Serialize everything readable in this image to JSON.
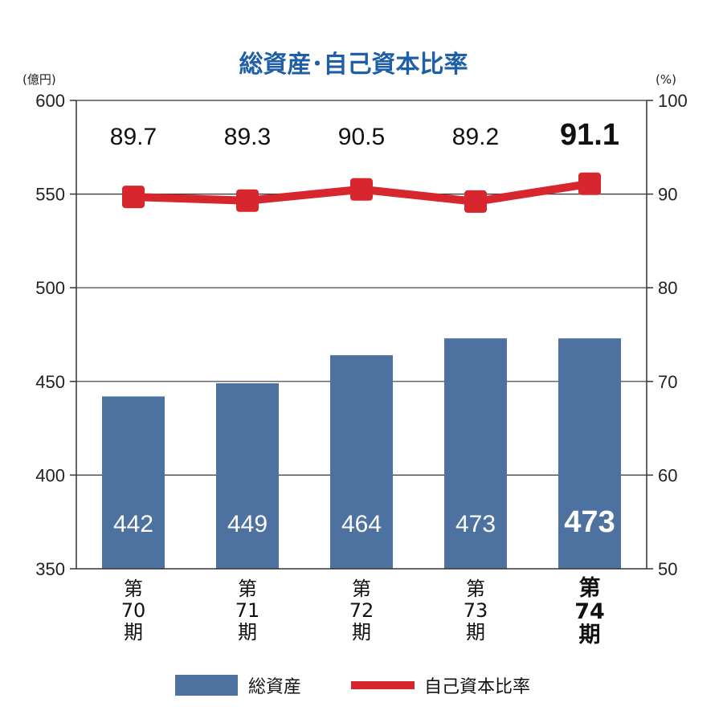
{
  "chart_data": {
    "type": "bar",
    "title": "総資産･自己資本比率",
    "title_color": "#1f5fa8",
    "left_axis_unit": "(億円)",
    "right_axis_unit": "(%)",
    "categories": [
      [
        "第",
        "70",
        "期"
      ],
      [
        "第",
        "71",
        "期"
      ],
      [
        "第",
        "72",
        "期"
      ],
      [
        "第",
        "73",
        "期"
      ],
      [
        "第",
        "74",
        "期"
      ]
    ],
    "highlight_index": 4,
    "ylim_left": [
      350,
      600
    ],
    "yticks_left": [
      "350",
      "400",
      "450",
      "500",
      "550",
      "600"
    ],
    "ylim_right": [
      50,
      100
    ],
    "yticks_right": [
      "50",
      "60",
      "70",
      "80",
      "90",
      "100"
    ],
    "grid": true,
    "series": [
      {
        "name": "総資産",
        "kind": "bar",
        "axis": "left",
        "color": "#4e72a0",
        "values": [
          442,
          449,
          464,
          473,
          473
        ],
        "labels": [
          "442",
          "449",
          "464",
          "473",
          "473"
        ]
      },
      {
        "name": "自己資本比率",
        "kind": "line",
        "axis": "right",
        "color": "#d7262e",
        "values": [
          89.7,
          89.3,
          90.5,
          89.2,
          91.1
        ],
        "labels": [
          "89.7",
          "89.3",
          "90.5",
          "89.2",
          "91.1"
        ]
      }
    ],
    "legend": [
      "総資産",
      "自己資本比率"
    ],
    "legend_position": "bottom"
  }
}
